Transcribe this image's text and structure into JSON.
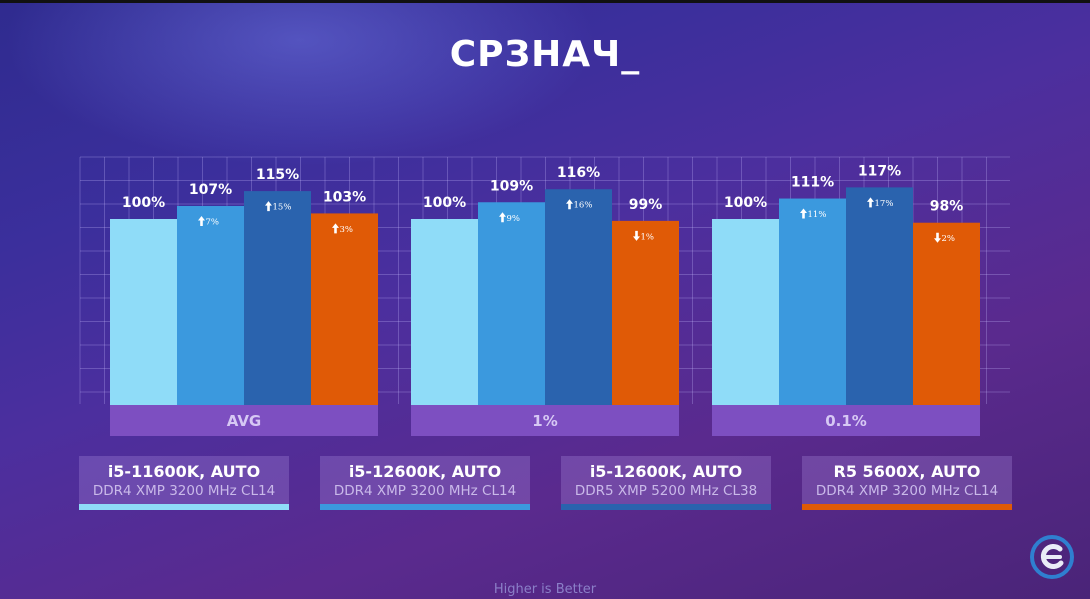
{
  "title": "СРЗНАЧ_",
  "footer": "Higher is Better",
  "colors": [
    "#8fdcf8",
    "#3b99de",
    "#2a63ae",
    "#e05a06"
  ],
  "legend": [
    {
      "cpu": "i5-11600K, AUTO",
      "ram": "DDR4 XMP 3200 MHz CL14",
      "color": "#8fdcf8"
    },
    {
      "cpu": "i5-12600K, AUTO",
      "ram": "DDR4 XMP 3200 MHz CL14",
      "color": "#3b99de"
    },
    {
      "cpu": "i5-12600K, AUTO",
      "ram": "DDR5 XMP 5200 MHz CL38",
      "color": "#2a63ae"
    },
    {
      "cpu": "R5 5600X, AUTO",
      "ram": "DDR4 XMP 3200 MHz CL14",
      "color": "#e05a06"
    }
  ],
  "chart_data": {
    "type": "bar",
    "categories": [
      "AVG",
      "1%",
      "0.1%"
    ],
    "series": [
      {
        "name": "i5-11600K, AUTO DDR4 XMP 3200 MHz CL14",
        "values": [
          100,
          100,
          100
        ],
        "labels": [
          "100%",
          "100%",
          "100%"
        ],
        "deltas": [
          "",
          "",
          ""
        ]
      },
      {
        "name": "i5-12600K, AUTO DDR4 XMP 3200 MHz CL14",
        "values": [
          107,
          109,
          111
        ],
        "labels": [
          "107%",
          "109%",
          "111%"
        ],
        "deltas": [
          "7%",
          "9%",
          "11%"
        ]
      },
      {
        "name": "i5-12600K, AUTO DDR5 XMP 5200 MHz CL38",
        "values": [
          115,
          116,
          117
        ],
        "labels": [
          "115%",
          "116%",
          "117%"
        ],
        "deltas": [
          "15%",
          "16%",
          "17%"
        ]
      },
      {
        "name": "R5 5600X, AUTO DDR4 XMP 3200 MHz CL14",
        "values": [
          103,
          99,
          98
        ],
        "labels": [
          "103%",
          "99%",
          "98%"
        ],
        "deltas": [
          "3%",
          "1%",
          "2%"
        ]
      }
    ],
    "delta_direction": [
      [
        "",
        "up",
        "up",
        "up"
      ],
      [
        "",
        "up",
        "up",
        "down"
      ],
      [
        "",
        "up",
        "up",
        "down"
      ]
    ],
    "grid": true,
    "legend_position": "bottom"
  }
}
